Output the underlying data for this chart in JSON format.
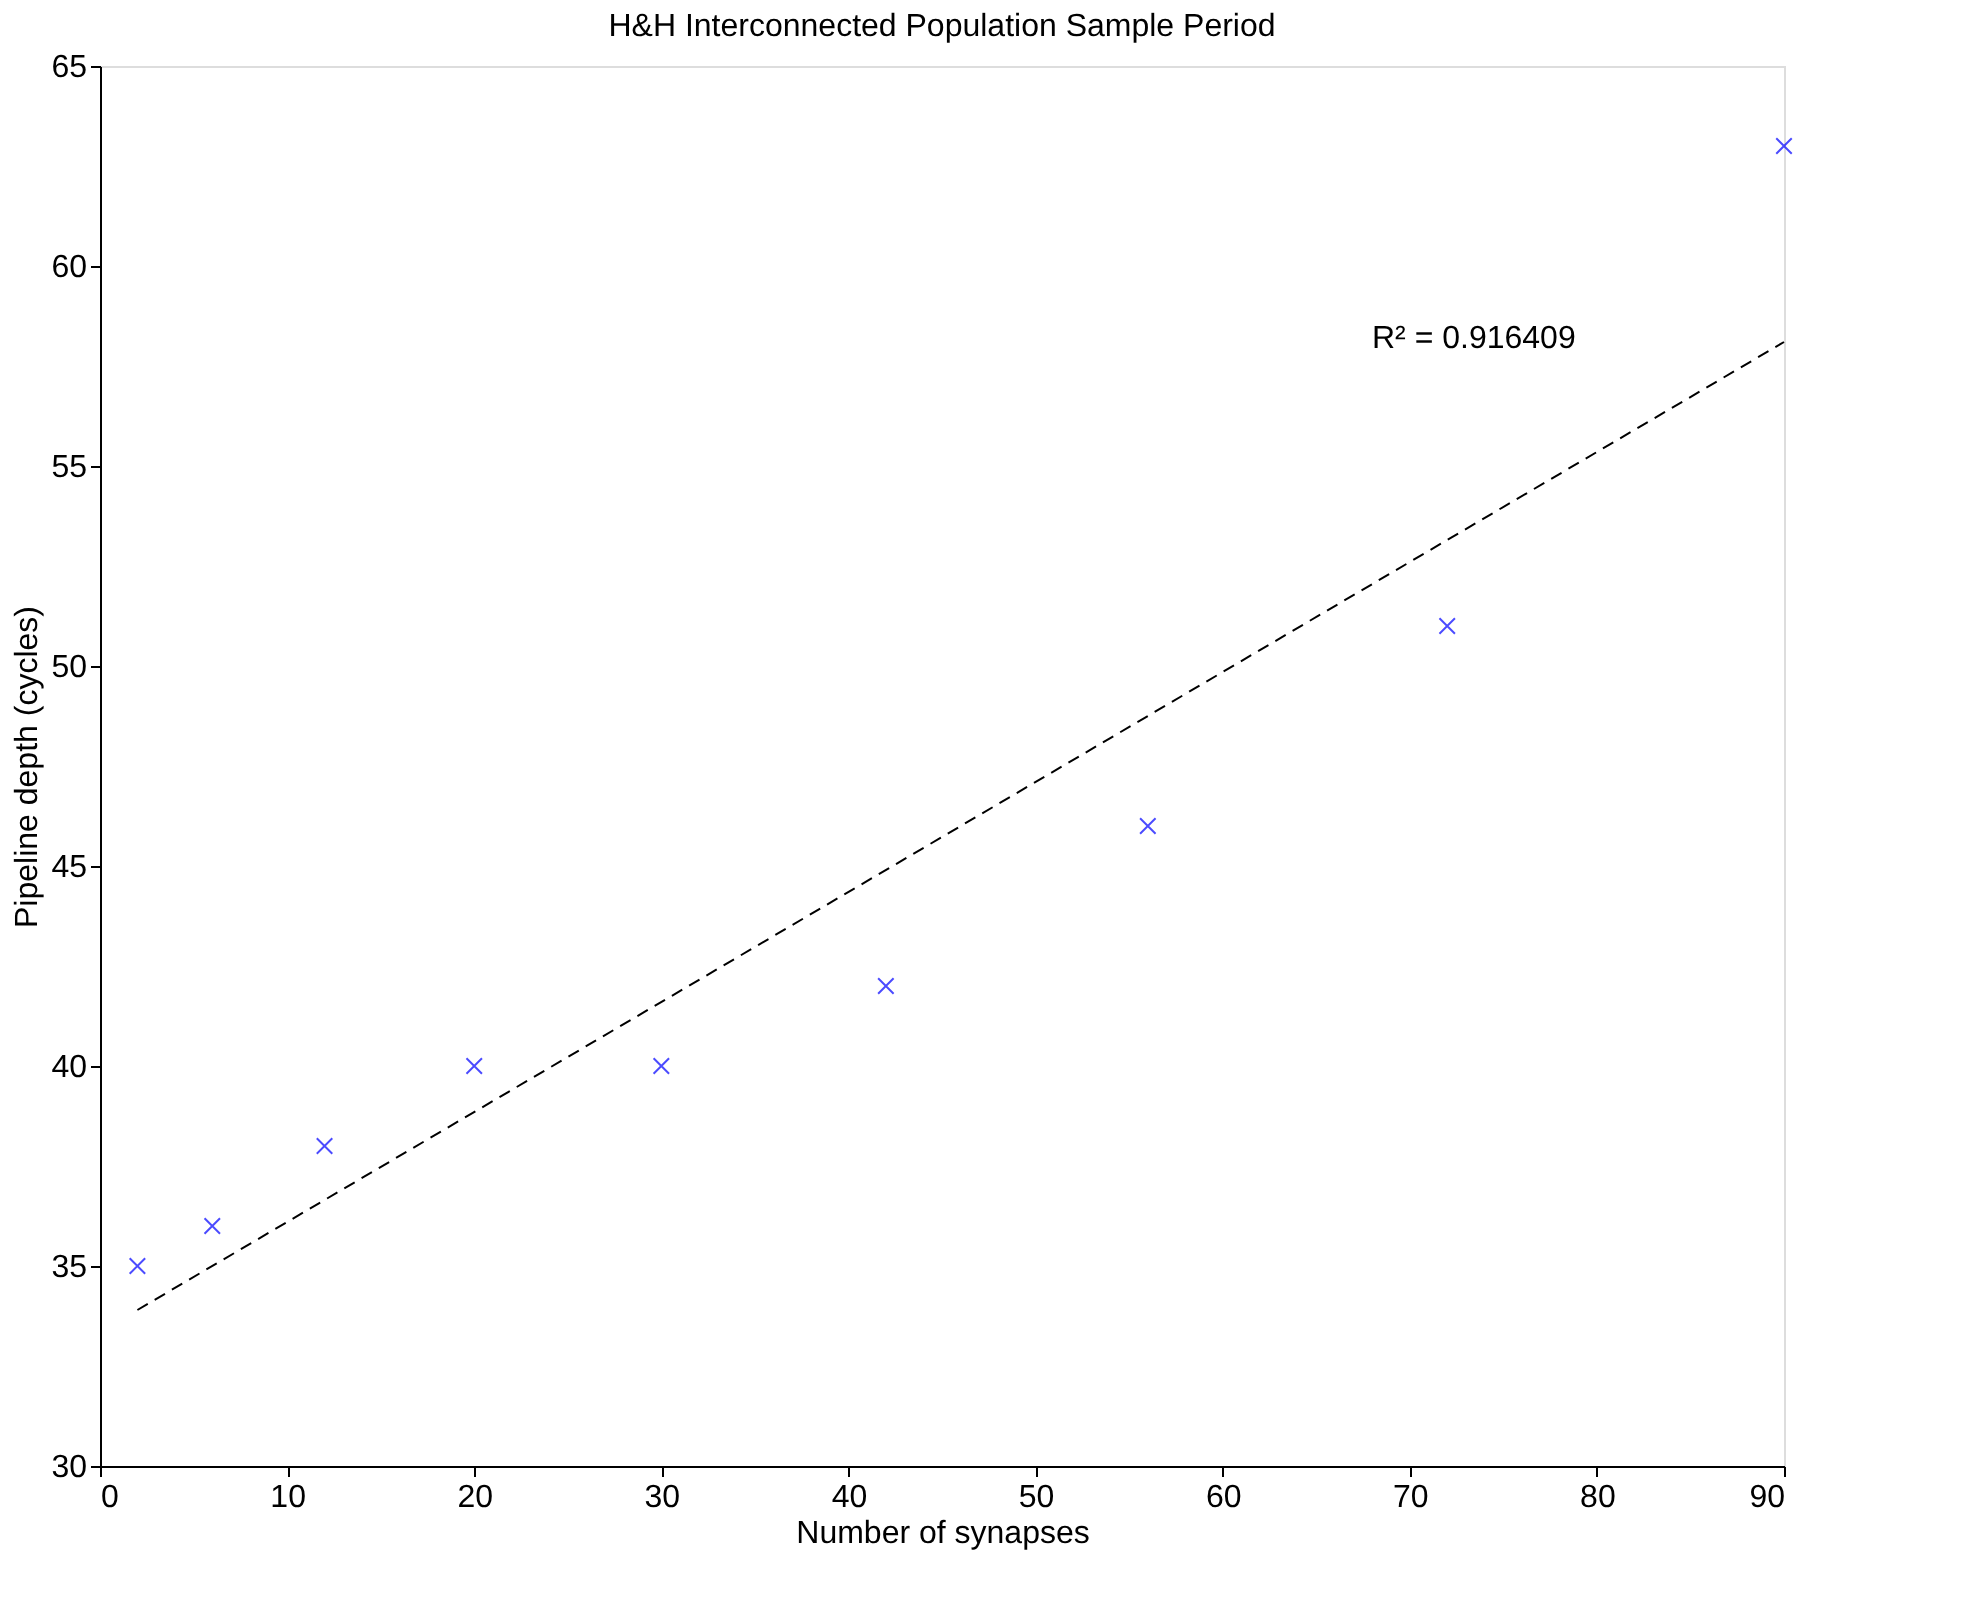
{
  "chart_data": {
    "type": "scatter",
    "title": "H&H Interconnected Population Sample Period",
    "xlabel": "Number of synapses",
    "ylabel": "Pipeline depth (cycles)",
    "xlim": [
      0,
      90
    ],
    "xticks": [
      0,
      10,
      20,
      30,
      40,
      50,
      60,
      70,
      80,
      90
    ],
    "ylim": [
      30,
      65
    ],
    "yticks": [
      30,
      35,
      40,
      45,
      50,
      55,
      60,
      65
    ],
    "grid": false,
    "series": [
      {
        "color": "#0000ff",
        "marker": "cross",
        "x": [
          2,
          6,
          12,
          20,
          30,
          42,
          56,
          72,
          90
        ],
        "values": [
          35,
          36,
          38,
          40,
          40,
          42,
          46,
          51,
          63
        ]
      },
      {
        "type": "line",
        "color": "#000000",
        "marker": "none",
        "line_style": "dashed",
        "x": [
          2,
          90
        ],
        "values": [
          33.9,
          58.1
        ]
      }
    ],
    "annotations": [
      "R² = 0.916409"
    ]
  }
}
